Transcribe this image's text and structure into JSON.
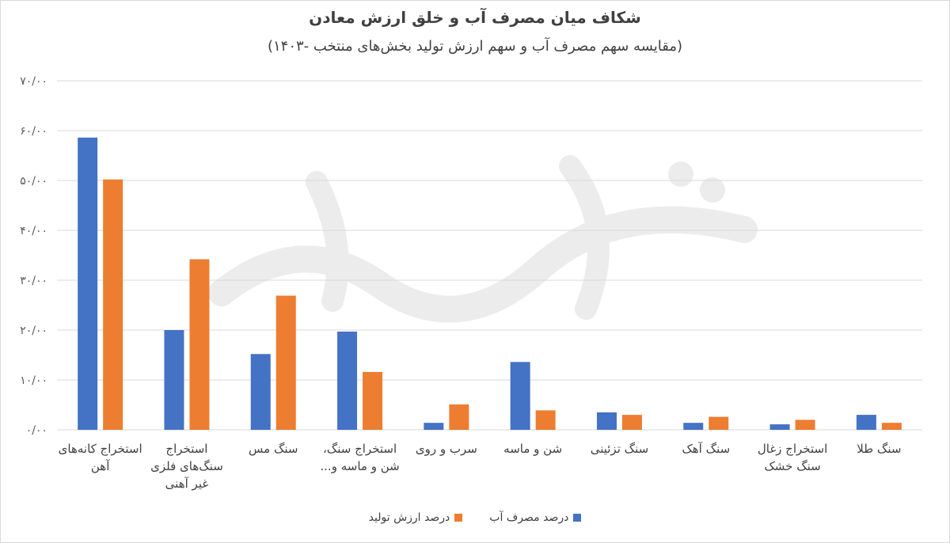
{
  "chart_data": {
    "type": "bar",
    "title": "شکاف میان مصرف آب و خلق ارزش معادن",
    "subtitle": "(مقایسه سهم مصرف آب و سهم ارزش تولید بخش‌های منتخب -۱۴۰۳)",
    "categories": [
      [
        "استخراج کانه‌های",
        "آهن"
      ],
      [
        "استخراج",
        "سنگ‌های فلزی",
        "غیر آهنی"
      ],
      [
        "سنگ مس"
      ],
      [
        "استخراج سنگ،",
        "شن و ماسه و..."
      ],
      [
        "سرب و روی"
      ],
      [
        "شن و ماسه"
      ],
      [
        "سنگ تزئینی"
      ],
      [
        "سنگ آهک"
      ],
      [
        "استخراج زغال",
        "سنگ خشک"
      ],
      [
        "سنگ طلا"
      ]
    ],
    "series": [
      {
        "name": "درصد مصرف آب",
        "color": "#4472C4",
        "values": [
          58.6,
          20.0,
          15.2,
          19.7,
          1.4,
          13.6,
          3.5,
          1.4,
          1.1,
          3.0
        ]
      },
      {
        "name": "درصد ارزش تولید",
        "color": "#ED7D31",
        "values": [
          50.2,
          34.2,
          26.9,
          11.6,
          5.1,
          3.9,
          3.0,
          2.6,
          2.0,
          1.4
        ]
      }
    ],
    "ylim": [
      0,
      70
    ],
    "y_ticks": [
      "۰/۰۰",
      "۱۰/۰۰",
      "۲۰/۰۰",
      "۳۰/۰۰",
      "۴۰/۰۰",
      "۵۰/۰۰",
      "۶۰/۰۰",
      "۷۰/۰۰"
    ],
    "grid": true,
    "legend_position": "bottom",
    "gridline_color": "#d9d9d9"
  }
}
